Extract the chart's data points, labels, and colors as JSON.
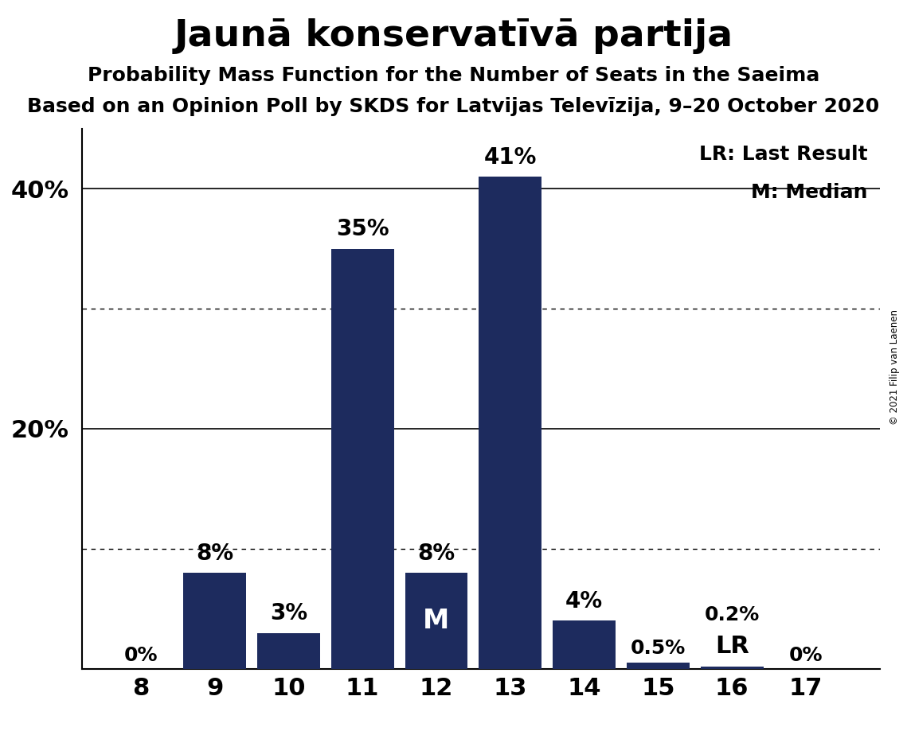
{
  "title": "Jaunā konservatīvā partija",
  "subtitle1": "Probability Mass Function for the Number of Seats in the Saeima",
  "subtitle2": "Based on an Opinion Poll by SKDS for Latvijas Televīzija, 9–20 October 2020",
  "copyright": "© 2021 Filip van Laenen",
  "legend_lr": "LR: Last Result",
  "legend_m": "M: Median",
  "seats": [
    8,
    9,
    10,
    11,
    12,
    13,
    14,
    15,
    16,
    17
  ],
  "probabilities": [
    0.0,
    8.0,
    3.0,
    35.0,
    8.0,
    41.0,
    4.0,
    0.5,
    0.2,
    0.0
  ],
  "labels": [
    "0%",
    "8%",
    "3%",
    "35%",
    "8%",
    "41%",
    "4%",
    "0.5%",
    "0.2%",
    "0%"
  ],
  "bar_color": "#1d2b5e",
  "median_seat": 12,
  "lr_seat": 16,
  "background_color": "#ffffff",
  "ylim": [
    0,
    45
  ],
  "dotted_lines": [
    10,
    30
  ],
  "solid_lines": [
    20,
    40
  ],
  "ytick_positions": [
    20,
    40
  ],
  "ytick_labels": [
    "20%",
    "40%"
  ]
}
